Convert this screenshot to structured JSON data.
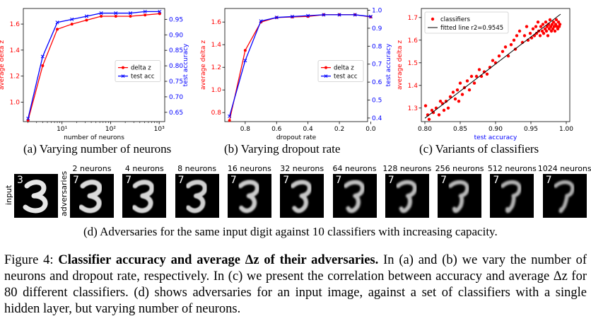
{
  "subcaptions": {
    "a": "(a) Varying number of neurons",
    "b": "(b) Varying dropout rate",
    "c": "(c) Variants of classifiers",
    "d": "(d) Adversaries for the same input digit against 10 classifiers with increasing capacity."
  },
  "figure_caption": {
    "label": "Figure 4:",
    "bold_title": "Classifier accuracy and average Δz of their adversaries.",
    "body": "In (a) and (b) we vary the number of neurons and dropout rate, respectively. In (c) we present the correlation between accuracy and average Δz for 80 different classifiers. (d) shows adversaries for an input image, against a set of classifiers with a single hidden layer, but varying number of neurons."
  },
  "digits": {
    "input_label": "input",
    "adversaries_label": "adversaries",
    "input_class": "3",
    "columns": [
      "2 neurons",
      "4 neurons",
      "8 neurons",
      "16 neurons",
      "32 neurons",
      "64 neurons",
      "128 neurons",
      "256 neurons",
      "512 neurons",
      "1024 neurons"
    ],
    "predicted": [
      "7",
      "7",
      "7",
      "7",
      "7",
      "7",
      "7",
      "7",
      "7",
      "7"
    ]
  },
  "colors": {
    "delta_z": "#ff0000",
    "test_acc": "#0000ff",
    "fit": "#000000"
  },
  "chart_data": [
    {
      "type": "line",
      "xlabel": "number of neurons",
      "ylabel": "average delta z",
      "y2label": "test accuracy",
      "x_scale": "log",
      "xlim": [
        1.6,
        1300
      ],
      "x_ticks": [
        {
          "v": 10,
          "t": "10¹"
        },
        {
          "v": 100,
          "t": "10²"
        },
        {
          "v": 1000,
          "t": "10³"
        }
      ],
      "ylim": [
        0.85,
        1.72
      ],
      "y_ticks": [
        1.0,
        1.2,
        1.4,
        1.6
      ],
      "y2lim": [
        0.62,
        0.985
      ],
      "y2_ticks": [
        0.65,
        0.7,
        0.75,
        0.8,
        0.85,
        0.9,
        0.95
      ],
      "x": [
        2,
        4,
        8,
        16,
        32,
        64,
        128,
        256,
        512,
        1024
      ],
      "series": [
        {
          "name": "delta z",
          "axis": "left",
          "values": [
            0.86,
            1.28,
            1.56,
            1.6,
            1.63,
            1.66,
            1.66,
            1.66,
            1.67,
            1.68
          ]
        },
        {
          "name": "test acc",
          "axis": "right",
          "values": [
            0.63,
            0.83,
            0.94,
            0.95,
            0.96,
            0.97,
            0.97,
            0.97,
            0.975,
            0.975
          ]
        }
      ],
      "legend": "center-right"
    },
    {
      "type": "line",
      "xlabel": "dropout rate",
      "ylabel": "average delta z",
      "y2label": "test accuracy",
      "x_scale": "linear-reversed",
      "xlim": [
        0.93,
        0.02
      ],
      "x_ticks": [
        {
          "v": 0.8,
          "t": "0.8"
        },
        {
          "v": 0.6,
          "t": "0.6"
        },
        {
          "v": 0.4,
          "t": "0.4"
        },
        {
          "v": 0.2,
          "t": "0.2"
        },
        {
          "v": 0.0,
          "t": "0.0"
        }
      ],
      "ylim": [
        0.72,
        1.72
      ],
      "y_ticks": [
        0.8,
        1.0,
        1.2,
        1.4,
        1.6
      ],
      "y2lim": [
        0.38,
        1.01
      ],
      "y2_ticks": [
        0.4,
        0.5,
        0.6,
        0.7,
        0.8,
        0.9,
        1.0
      ],
      "x": [
        0.9,
        0.8,
        0.7,
        0.6,
        0.5,
        0.4,
        0.3,
        0.2,
        0.1,
        0.0
      ],
      "series": [
        {
          "name": "delta z",
          "axis": "left",
          "values": [
            0.73,
            1.35,
            1.6,
            1.64,
            1.645,
            1.65,
            1.665,
            1.665,
            1.665,
            1.645
          ]
        },
        {
          "name": "test acc",
          "axis": "right",
          "values": [
            0.41,
            0.72,
            0.94,
            0.96,
            0.965,
            0.97,
            0.975,
            0.975,
            0.975,
            0.965
          ]
        }
      ],
      "legend": "center-right"
    },
    {
      "type": "scatter",
      "xlabel": "test accuracy",
      "ylabel": "average delta z",
      "xlim": [
        0.795,
        1.005
      ],
      "ylim": [
        1.24,
        1.74
      ],
      "x_ticks": [
        {
          "v": 0.8,
          "t": "0.80"
        },
        {
          "v": 0.85,
          "t": "0.85"
        },
        {
          "v": 0.9,
          "t": "0.90"
        },
        {
          "v": 0.95,
          "t": "0.95"
        },
        {
          "v": 1.0,
          "t": "1.00"
        }
      ],
      "y_ticks": [
        1.3,
        1.4,
        1.5,
        1.6,
        1.7
      ],
      "legend": "top-left",
      "legend_entries": [
        "classifiers",
        "fitted line r2=0.9545"
      ],
      "fit_line": {
        "x": [
          0.8,
          0.992
        ],
        "y": [
          1.255,
          1.715
        ]
      },
      "points": [
        [
          0.801,
          1.31
        ],
        [
          0.804,
          1.27
        ],
        [
          0.806,
          1.25
        ],
        [
          0.81,
          1.29
        ],
        [
          0.812,
          1.28
        ],
        [
          0.816,
          1.3
        ],
        [
          0.82,
          1.27
        ],
        [
          0.822,
          1.33
        ],
        [
          0.825,
          1.32
        ],
        [
          0.827,
          1.29
        ],
        [
          0.83,
          1.33
        ],
        [
          0.833,
          1.3
        ],
        [
          0.836,
          1.35
        ],
        [
          0.84,
          1.37
        ],
        [
          0.843,
          1.34
        ],
        [
          0.846,
          1.38
        ],
        [
          0.848,
          1.33
        ],
        [
          0.85,
          1.41
        ],
        [
          0.853,
          1.36
        ],
        [
          0.856,
          1.39
        ],
        [
          0.86,
          1.42
        ],
        [
          0.863,
          1.38
        ],
        [
          0.866,
          1.44
        ],
        [
          0.87,
          1.41
        ],
        [
          0.873,
          1.44
        ],
        [
          0.877,
          1.47
        ],
        [
          0.88,
          1.44
        ],
        [
          0.884,
          1.46
        ],
        [
          0.888,
          1.45
        ],
        [
          0.892,
          1.48
        ],
        [
          0.896,
          1.51
        ],
        [
          0.9,
          1.5
        ],
        [
          0.905,
          1.53
        ],
        [
          0.91,
          1.55
        ],
        [
          0.914,
          1.57
        ],
        [
          0.918,
          1.53
        ],
        [
          0.922,
          1.58
        ],
        [
          0.926,
          1.6
        ],
        [
          0.928,
          1.56
        ],
        [
          0.93,
          1.62
        ],
        [
          0.934,
          1.64
        ],
        [
          0.938,
          1.59
        ],
        [
          0.941,
          1.62
        ],
        [
          0.944,
          1.66
        ],
        [
          0.946,
          1.6
        ],
        [
          0.949,
          1.63
        ],
        [
          0.951,
          1.61
        ],
        [
          0.953,
          1.65
        ],
        [
          0.955,
          1.62
        ],
        [
          0.957,
          1.66
        ],
        [
          0.958,
          1.63
        ],
        [
          0.96,
          1.68
        ],
        [
          0.961,
          1.64
        ],
        [
          0.963,
          1.62
        ],
        [
          0.964,
          1.66
        ],
        [
          0.966,
          1.64
        ],
        [
          0.967,
          1.67
        ],
        [
          0.968,
          1.63
        ],
        [
          0.97,
          1.65
        ],
        [
          0.971,
          1.68
        ],
        [
          0.972,
          1.64
        ],
        [
          0.973,
          1.66
        ],
        [
          0.974,
          1.62
        ],
        [
          0.975,
          1.67
        ],
        [
          0.976,
          1.65
        ],
        [
          0.977,
          1.69
        ],
        [
          0.978,
          1.66
        ],
        [
          0.979,
          1.64
        ],
        [
          0.98,
          1.67
        ],
        [
          0.981,
          1.65
        ],
        [
          0.982,
          1.68
        ],
        [
          0.983,
          1.66
        ],
        [
          0.984,
          1.64
        ],
        [
          0.985,
          1.67
        ],
        [
          0.986,
          1.69
        ],
        [
          0.987,
          1.66
        ],
        [
          0.988,
          1.65
        ],
        [
          0.989,
          1.68
        ],
        [
          0.99,
          1.66
        ],
        [
          0.991,
          1.67
        ]
      ]
    }
  ]
}
